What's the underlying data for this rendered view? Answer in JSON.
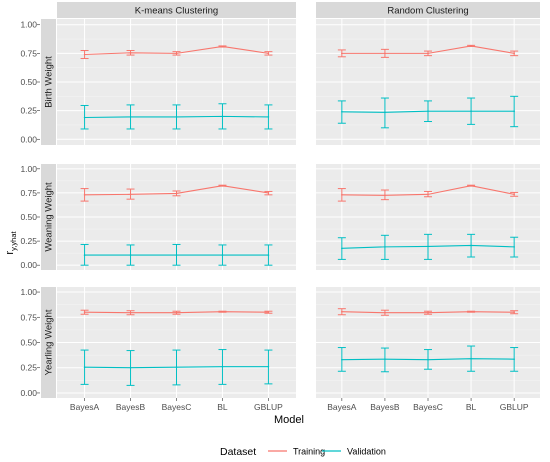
{
  "chart_data": {
    "type": "line",
    "xlabel": "Model",
    "ylabel_main": "r",
    "ylabel_sub": "y,yhat",
    "categories": [
      "BayesA",
      "BayesB",
      "BayesC",
      "BL",
      "GBLUP"
    ],
    "ylim": [
      -0.05,
      1.05
    ],
    "yticks": [
      "0.00",
      "0.25",
      "0.50",
      "0.75",
      "1.00"
    ],
    "ytick_values": [
      0,
      0.25,
      0.5,
      0.75,
      1.0
    ],
    "col_labels": [
      "K-means Clustering",
      "Random Clustering"
    ],
    "row_labels": [
      "Birth Weight",
      "Weaning Weight",
      "Yearling Weight"
    ],
    "legend": {
      "title": "Dataset",
      "position": "bottom",
      "entries": [
        {
          "name": "Training",
          "color": "#F8766D"
        },
        {
          "name": "Validation",
          "color": "#00BFC4"
        }
      ]
    },
    "grid": true,
    "panels": [
      {
        "row": "Birth Weight",
        "col": "K-means Clustering",
        "series": [
          {
            "name": "Training",
            "values": [
              0.74,
              0.755,
              0.75,
              0.81,
              0.75
            ],
            "lower": [
              0.705,
              0.735,
              0.735,
              0.805,
              0.735
            ],
            "upper": [
              0.775,
              0.775,
              0.765,
              0.815,
              0.765
            ]
          },
          {
            "name": "Validation",
            "values": [
              0.19,
              0.195,
              0.195,
              0.2,
              0.195
            ],
            "lower": [
              0.09,
              0.09,
              0.09,
              0.09,
              0.09
            ],
            "upper": [
              0.295,
              0.3,
              0.3,
              0.31,
              0.3
            ]
          }
        ]
      },
      {
        "row": "Birth Weight",
        "col": "Random Clustering",
        "series": [
          {
            "name": "Training",
            "values": [
              0.75,
              0.75,
              0.75,
              0.815,
              0.75
            ],
            "lower": [
              0.72,
              0.715,
              0.73,
              0.81,
              0.73
            ],
            "upper": [
              0.78,
              0.785,
              0.77,
              0.82,
              0.77
            ]
          },
          {
            "name": "Validation",
            "values": [
              0.24,
              0.235,
              0.245,
              0.245,
              0.245
            ],
            "lower": [
              0.14,
              0.1,
              0.155,
              0.13,
              0.11
            ],
            "upper": [
              0.335,
              0.36,
              0.335,
              0.36,
              0.375
            ]
          }
        ]
      },
      {
        "row": "Weaning Weight",
        "col": "K-means Clustering",
        "series": [
          {
            "name": "Training",
            "values": [
              0.73,
              0.735,
              0.745,
              0.825,
              0.75
            ],
            "lower": [
              0.665,
              0.685,
              0.72,
              0.82,
              0.73
            ],
            "upper": [
              0.795,
              0.79,
              0.77,
              0.83,
              0.765
            ]
          },
          {
            "name": "Validation",
            "values": [
              0.105,
              0.105,
              0.105,
              0.105,
              0.105
            ],
            "lower": [
              0.0,
              0.0,
              0.0,
              0.0,
              0.0
            ],
            "upper": [
              0.215,
              0.21,
              0.215,
              0.21,
              0.21
            ]
          }
        ]
      },
      {
        "row": "Weaning Weight",
        "col": "Random Clustering",
        "series": [
          {
            "name": "Training",
            "values": [
              0.73,
              0.725,
              0.735,
              0.825,
              0.735
            ],
            "lower": [
              0.665,
              0.68,
              0.71,
              0.82,
              0.715
            ],
            "upper": [
              0.795,
              0.78,
              0.765,
              0.83,
              0.755
            ]
          },
          {
            "name": "Validation",
            "values": [
              0.175,
              0.19,
              0.195,
              0.205,
              0.19
            ],
            "lower": [
              0.06,
              0.06,
              0.06,
              0.085,
              0.085
            ],
            "upper": [
              0.285,
              0.31,
              0.32,
              0.32,
              0.29
            ]
          }
        ]
      },
      {
        "row": "Yearling Weight",
        "col": "K-means Clustering",
        "series": [
          {
            "name": "Training",
            "values": [
              0.8,
              0.795,
              0.795,
              0.805,
              0.8
            ],
            "lower": [
              0.78,
              0.775,
              0.78,
              0.8,
              0.79
            ],
            "upper": [
              0.82,
              0.815,
              0.81,
              0.81,
              0.81
            ]
          },
          {
            "name": "Validation",
            "values": [
              0.255,
              0.25,
              0.255,
              0.26,
              0.26
            ],
            "lower": [
              0.085,
              0.075,
              0.08,
              0.085,
              0.09
            ],
            "upper": [
              0.425,
              0.42,
              0.425,
              0.43,
              0.425
            ]
          }
        ]
      },
      {
        "row": "Yearling Weight",
        "col": "Random Clustering",
        "series": [
          {
            "name": "Training",
            "values": [
              0.805,
              0.795,
              0.795,
              0.805,
              0.8
            ],
            "lower": [
              0.775,
              0.77,
              0.78,
              0.8,
              0.785
            ],
            "upper": [
              0.835,
              0.82,
              0.81,
              0.81,
              0.815
            ]
          },
          {
            "name": "Validation",
            "values": [
              0.33,
              0.335,
              0.33,
              0.34,
              0.335
            ],
            "lower": [
              0.215,
              0.21,
              0.235,
              0.215,
              0.215
            ],
            "upper": [
              0.45,
              0.445,
              0.43,
              0.465,
              0.45
            ]
          }
        ]
      }
    ]
  }
}
